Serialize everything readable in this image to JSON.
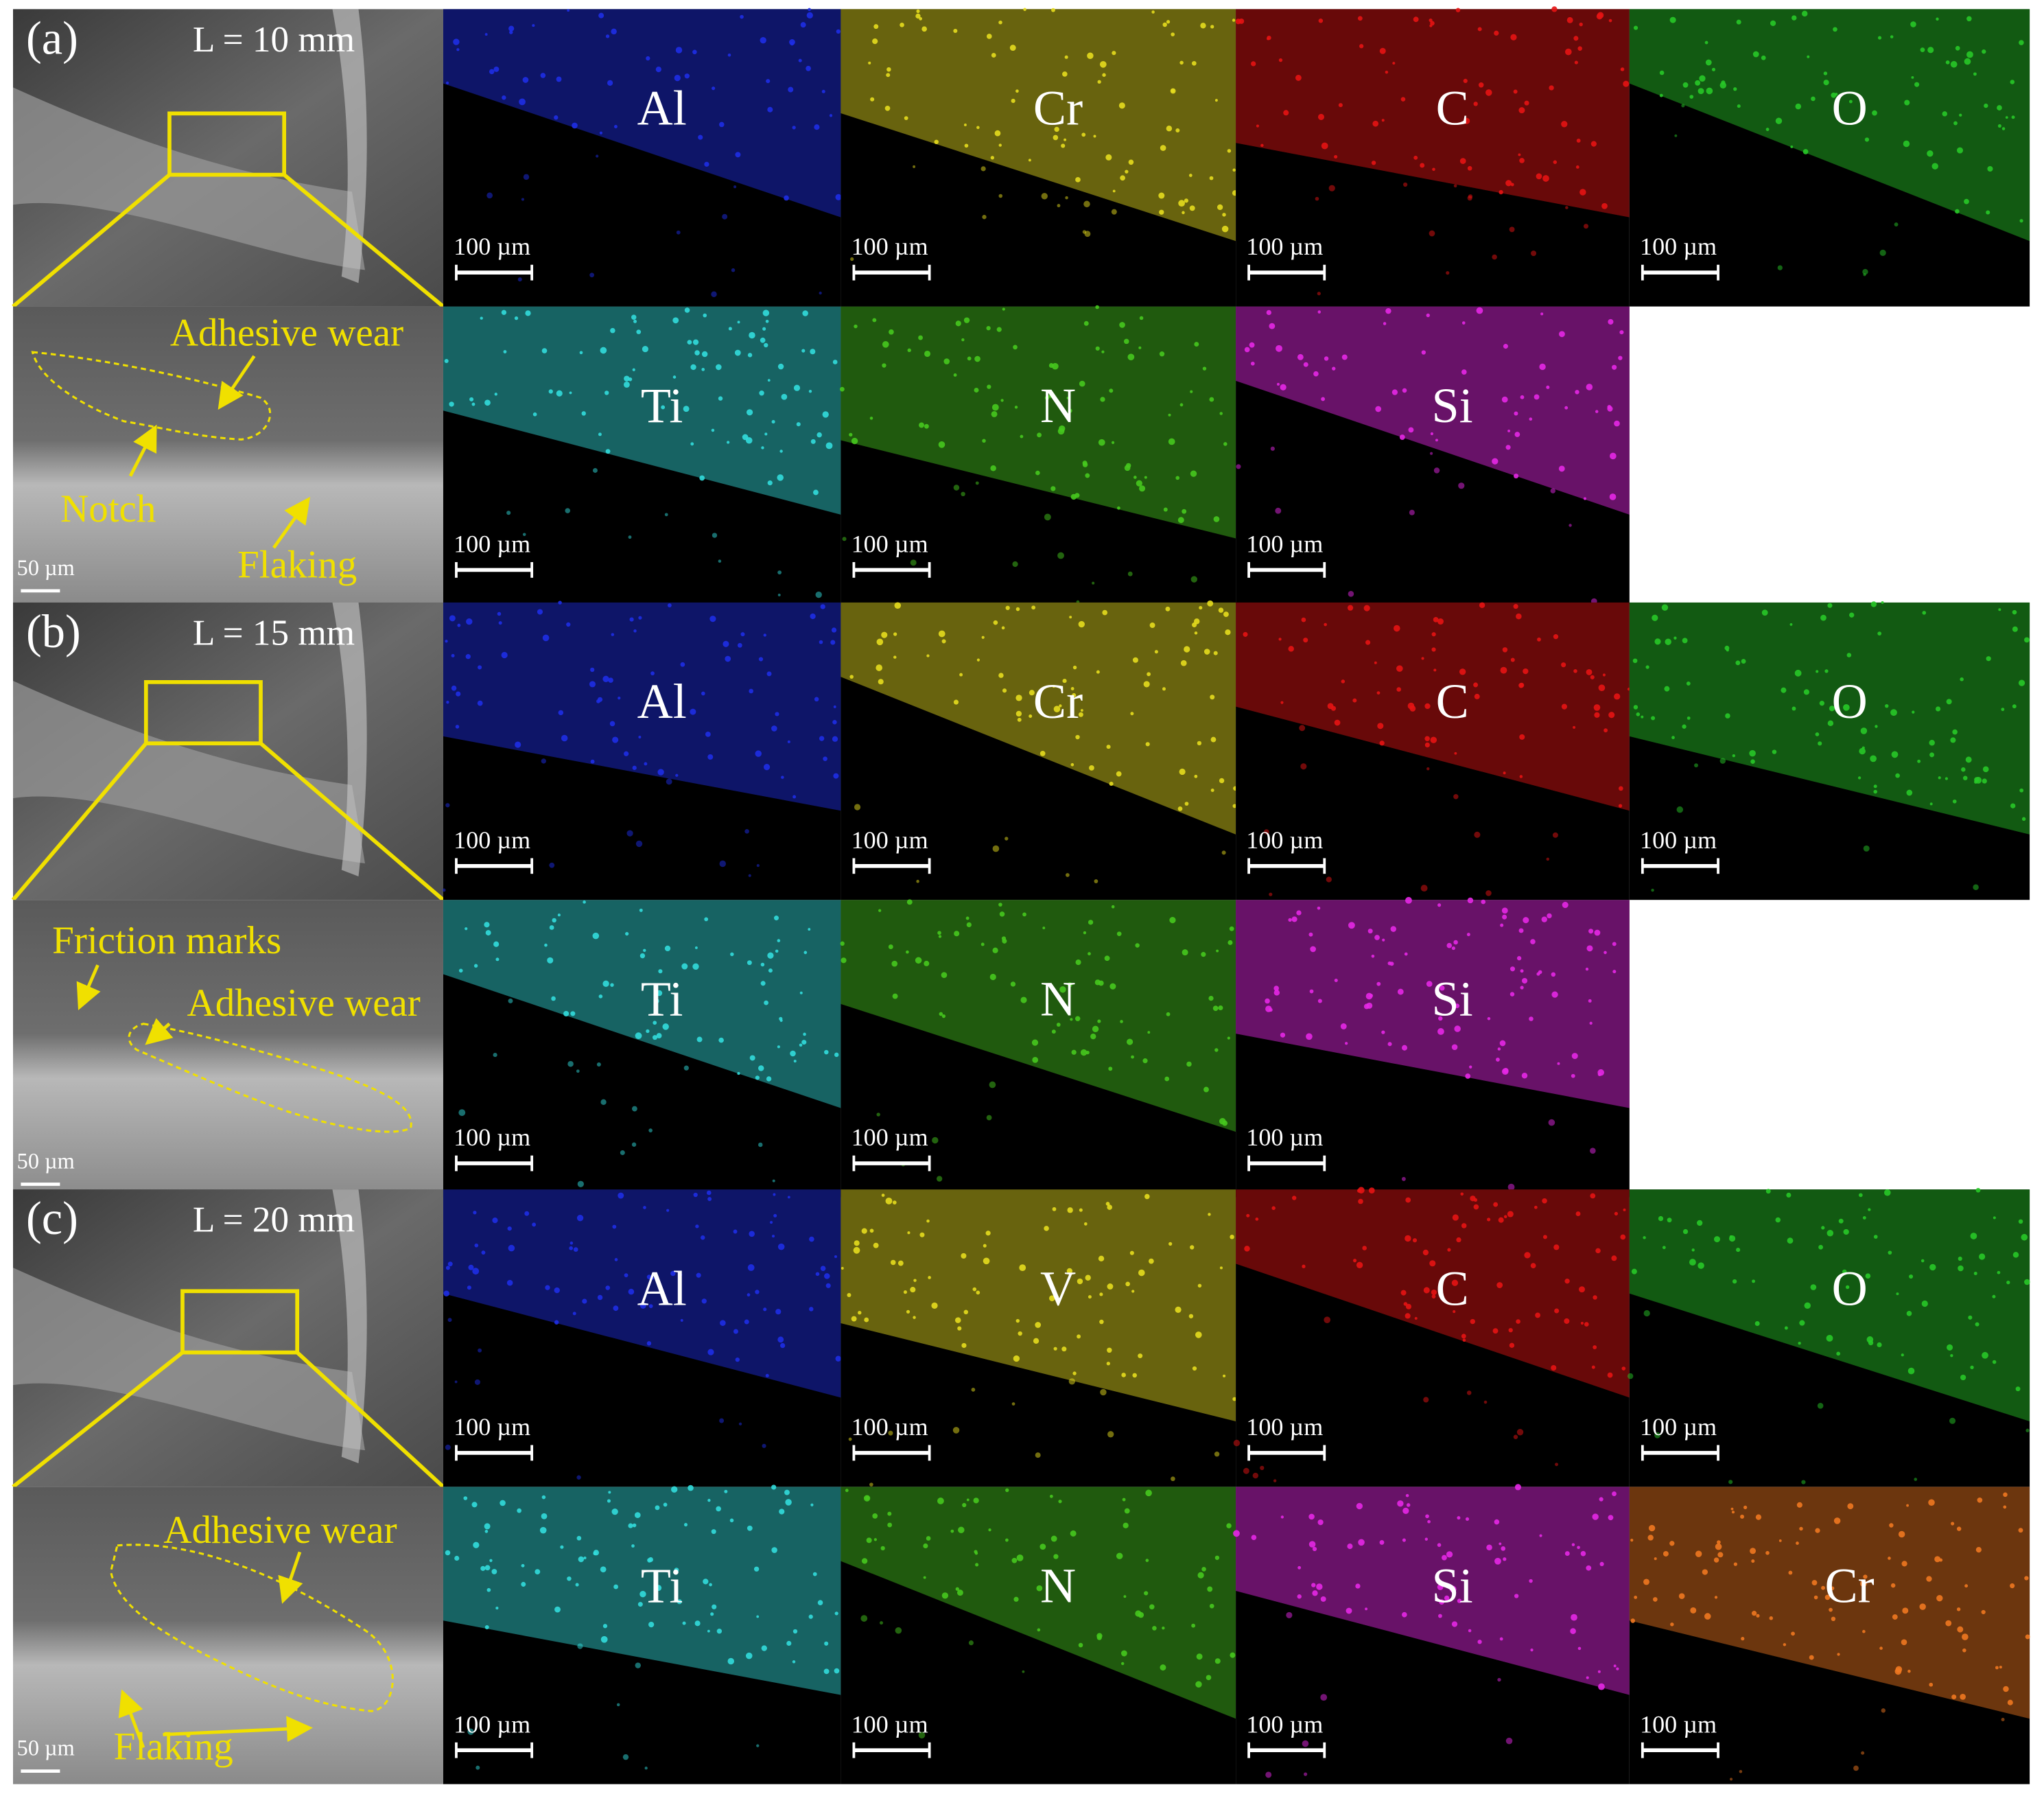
{
  "panels": [
    {
      "label": "(a)",
      "length": "L = 10 mm",
      "sem": {
        "annotations": [
          "Adhesive wear",
          "Notch",
          "Flaking"
        ],
        "scale": "50 µm"
      },
      "top_maps": [
        {
          "element": "Al",
          "color": "#1e2ee6",
          "scale": "100 µm"
        },
        {
          "element": "Cr",
          "color": "#e6dc1e",
          "scale": "100 µm"
        },
        {
          "element": "C",
          "color": "#e61414",
          "scale": "100 µm"
        },
        {
          "element": "O",
          "color": "#28c828",
          "scale": "100 µm"
        }
      ],
      "bottom_maps": [
        {
          "element": "Ti",
          "color": "#32dcdc",
          "scale": "100 µm"
        },
        {
          "element": "N",
          "color": "#46c81e",
          "scale": "100 µm"
        },
        {
          "element": "Si",
          "color": "#e628e6",
          "scale": "100 µm"
        }
      ]
    },
    {
      "label": "(b)",
      "length": "L = 15 mm",
      "sem": {
        "annotations": [
          "Friction marks",
          "Adhesive wear"
        ],
        "scale": "50 µm"
      },
      "top_maps": [
        {
          "element": "Al",
          "color": "#1e2ee6",
          "scale": "100 µm"
        },
        {
          "element": "Cr",
          "color": "#e6dc1e",
          "scale": "100 µm"
        },
        {
          "element": "C",
          "color": "#e61414",
          "scale": "100 µm"
        },
        {
          "element": "O",
          "color": "#28c828",
          "scale": "100 µm"
        }
      ],
      "bottom_maps": [
        {
          "element": "Ti",
          "color": "#32dcdc",
          "scale": "100 µm"
        },
        {
          "element": "N",
          "color": "#46c81e",
          "scale": "100 µm"
        },
        {
          "element": "Si",
          "color": "#e628e6",
          "scale": "100 µm"
        }
      ]
    },
    {
      "label": "(c)",
      "length": "L = 20 mm",
      "sem": {
        "annotations": [
          "Adhesive wear",
          "Flaking"
        ],
        "scale": "50 µm"
      },
      "top_maps": [
        {
          "element": "Al",
          "color": "#1e2ee6",
          "scale": "100 µm"
        },
        {
          "element": "V",
          "color": "#e6dc1e",
          "scale": "100 µm"
        },
        {
          "element": "C",
          "color": "#e61414",
          "scale": "100 µm"
        },
        {
          "element": "O",
          "color": "#28c828",
          "scale": "100 µm"
        }
      ],
      "bottom_maps": [
        {
          "element": "Ti",
          "color": "#32dcdc",
          "scale": "100 µm"
        },
        {
          "element": "N",
          "color": "#46c81e",
          "scale": "100 µm"
        },
        {
          "element": "Si",
          "color": "#e628e6",
          "scale": "100 µm"
        },
        {
          "element": "Cr",
          "color": "#f07820",
          "scale": "100 µm"
        }
      ]
    }
  ]
}
